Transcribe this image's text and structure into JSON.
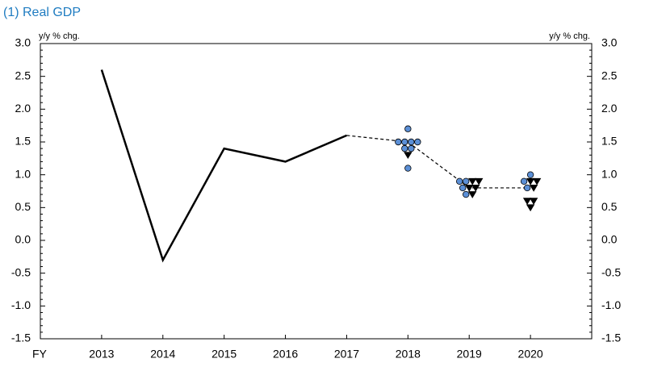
{
  "chart_data": {
    "type": "line",
    "title": "(1) Real GDP",
    "ylabel": "y/y % chg.",
    "y2label": "y/y % chg.",
    "xlabel": "FY",
    "x": [
      2013,
      2014,
      2015,
      2016,
      2017,
      2018,
      2019,
      2020
    ],
    "xlim": [
      2012,
      2021
    ],
    "xticks": [
      2013,
      2014,
      2015,
      2016,
      2017,
      2018,
      2019,
      2020
    ],
    "ylim": [
      -1.5,
      3
    ],
    "yticks": [
      {
        "value": 3,
        "label": "3.0"
      },
      2.5,
      {
        "value": 2,
        "label": "2.0"
      },
      1.5,
      {
        "value": 1,
        "label": "1.0"
      },
      0.5,
      {
        "value": 0,
        "label": "0.0"
      },
      -0.5,
      {
        "value": -1,
        "label": "-1.0"
      },
      -1.5
    ],
    "y2lim": [
      -1.5,
      3
    ],
    "y2ticks": [
      {
        "value": 3,
        "label": "3.0"
      },
      2.5,
      {
        "value": 2,
        "label": "2.0"
      },
      1.5,
      {
        "value": 1,
        "label": "1.0"
      },
      0.5,
      {
        "value": 0,
        "label": "0.0"
      },
      -0.5,
      {
        "value": -1,
        "label": "-1.0"
      },
      -1.5
    ],
    "series": [
      {
        "type": "line",
        "color": "#000000",
        "dash": "solid",
        "values": [
          2.6,
          -0.3,
          1.4,
          1.2,
          1.6,
          null,
          null,
          null
        ]
      },
      {
        "type": "line",
        "color": "#000000",
        "dash": "dashed",
        "values": [
          null,
          null,
          null,
          null,
          1.6,
          1.5,
          0.8,
          0.8
        ]
      },
      {
        "type": "scatter",
        "marker": "circle",
        "color": "#5b8fd6",
        "x": [
          2018,
          2018,
          2018,
          2018,
          2018,
          2018,
          2018,
          2018,
          2019,
          2019,
          2019,
          2019,
          2020,
          2020,
          2020
        ],
        "values": [
          1.7,
          1.5,
          1.5,
          1.5,
          1.5,
          1.4,
          1.4,
          1.1,
          0.9,
          0.9,
          0.8,
          0.7,
          1.0,
          0.9,
          0.8
        ]
      },
      {
        "type": "scatter",
        "marker": "triangle-down",
        "color": "#000000",
        "x": [
          2018,
          2019,
          2019,
          2019,
          2019,
          2019,
          2020,
          2020,
          2020,
          2020,
          2020,
          2020
        ],
        "values": [
          1.3,
          0.9,
          0.9,
          0.8,
          0.8,
          0.7,
          0.9,
          0.9,
          0.8,
          0.6,
          0.6,
          0.5
        ]
      }
    ]
  }
}
